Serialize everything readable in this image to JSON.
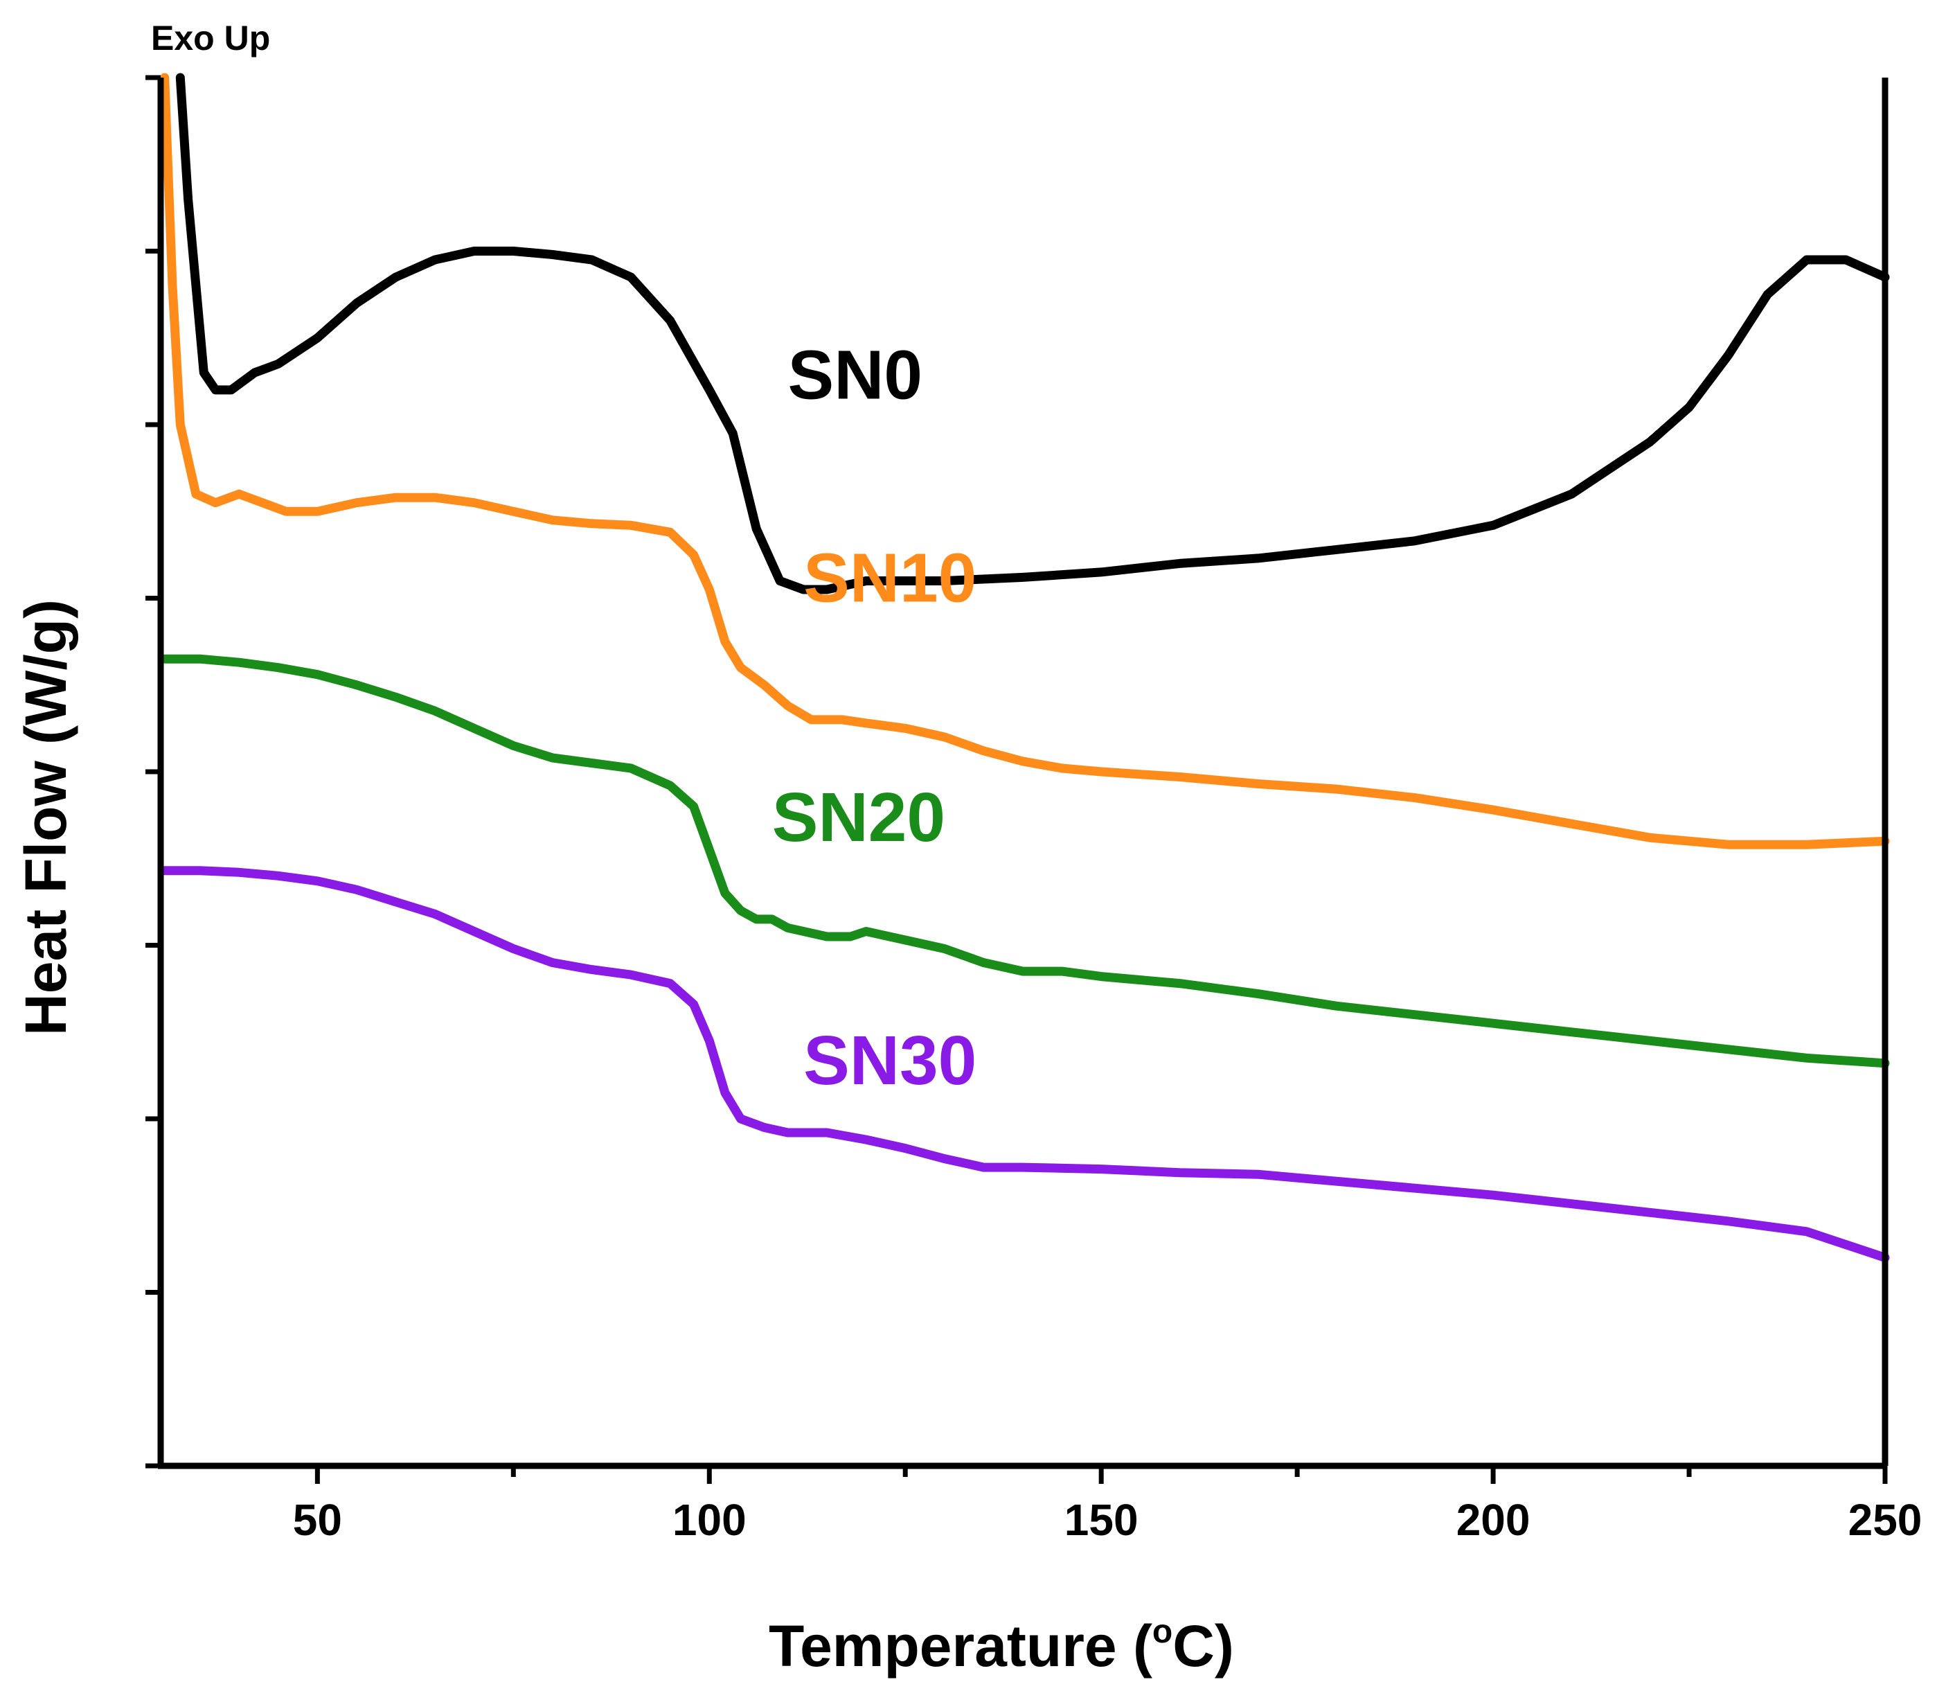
{
  "chart_data": {
    "type": "line",
    "title": "",
    "annotation": "Exo Up",
    "xlabel": "Temperature (",
    "xlabel_degree": "o",
    "xlabel_unit": "C)",
    "ylabel": "Heat Flow (W/g)",
    "xlim": [
      30,
      250
    ],
    "ylim": [
      0,
      8
    ],
    "x_ticks_major": [
      50,
      100,
      150,
      200,
      250
    ],
    "x_tick_labels": [
      "50",
      "100",
      "150",
      "200",
      "250"
    ],
    "x_ticks_minor": [
      75,
      125,
      175,
      225
    ],
    "y_ticks": [
      0,
      1,
      2,
      3,
      4,
      5,
      6,
      7,
      8
    ],
    "y_tick_labels_visible": false,
    "grid": false,
    "legend": "none",
    "series": [
      {
        "name": "SN0",
        "color": "#000000",
        "label_at": [
          110,
          6.15
        ],
        "points": [
          [
            32.5,
            8.0
          ],
          [
            33.5,
            7.3
          ],
          [
            35.5,
            6.3
          ],
          [
            37,
            6.2
          ],
          [
            39,
            6.2
          ],
          [
            42,
            6.3
          ],
          [
            45,
            6.35
          ],
          [
            50,
            6.5
          ],
          [
            55,
            6.7
          ],
          [
            60,
            6.85
          ],
          [
            65,
            6.95
          ],
          [
            70,
            7.0
          ],
          [
            75,
            7.0
          ],
          [
            80,
            6.98
          ],
          [
            85,
            6.95
          ],
          [
            90,
            6.85
          ],
          [
            95,
            6.6
          ],
          [
            100,
            6.2
          ],
          [
            103,
            5.95
          ],
          [
            106,
            5.4
          ],
          [
            109,
            5.1
          ],
          [
            112,
            5.05
          ],
          [
            115,
            5.05
          ],
          [
            120,
            5.1
          ],
          [
            125,
            5.1
          ],
          [
            130,
            5.1
          ],
          [
            140,
            5.12
          ],
          [
            150,
            5.15
          ],
          [
            160,
            5.2
          ],
          [
            170,
            5.23
          ],
          [
            180,
            5.28
          ],
          [
            190,
            5.33
          ],
          [
            200,
            5.42
          ],
          [
            210,
            5.6
          ],
          [
            220,
            5.9
          ],
          [
            225,
            6.1
          ],
          [
            230,
            6.4
          ],
          [
            235,
            6.75
          ],
          [
            240,
            6.95
          ],
          [
            245,
            6.95
          ],
          [
            250,
            6.85
          ]
        ]
      },
      {
        "name": "SN10",
        "color": "#ff8c1a",
        "label_at": [
          112,
          4.98
        ],
        "points": [
          [
            30.5,
            8.0
          ],
          [
            31.5,
            6.8
          ],
          [
            32.5,
            6.0
          ],
          [
            34.5,
            5.6
          ],
          [
            37,
            5.55
          ],
          [
            40,
            5.6
          ],
          [
            43,
            5.55
          ],
          [
            46,
            5.5
          ],
          [
            50,
            5.5
          ],
          [
            55,
            5.55
          ],
          [
            60,
            5.58
          ],
          [
            65,
            5.58
          ],
          [
            70,
            5.55
          ],
          [
            75,
            5.5
          ],
          [
            80,
            5.45
          ],
          [
            85,
            5.43
          ],
          [
            90,
            5.42
          ],
          [
            95,
            5.38
          ],
          [
            98,
            5.25
          ],
          [
            100,
            5.05
          ],
          [
            102,
            4.75
          ],
          [
            104,
            4.6
          ],
          [
            107,
            4.5
          ],
          [
            110,
            4.38
          ],
          [
            113,
            4.3
          ],
          [
            117,
            4.3
          ],
          [
            120,
            4.28
          ],
          [
            125,
            4.25
          ],
          [
            130,
            4.2
          ],
          [
            135,
            4.12
          ],
          [
            140,
            4.06
          ],
          [
            145,
            4.02
          ],
          [
            150,
            4.0
          ],
          [
            160,
            3.97
          ],
          [
            170,
            3.93
          ],
          [
            180,
            3.9
          ],
          [
            190,
            3.85
          ],
          [
            200,
            3.78
          ],
          [
            210,
            3.7
          ],
          [
            220,
            3.62
          ],
          [
            230,
            3.58
          ],
          [
            240,
            3.58
          ],
          [
            250,
            3.6
          ]
        ]
      },
      {
        "name": "SN20",
        "color": "#1a8c1a",
        "label_at": [
          108,
          3.6
        ],
        "points": [
          [
            30.5,
            4.65
          ],
          [
            35,
            4.65
          ],
          [
            40,
            4.63
          ],
          [
            45,
            4.6
          ],
          [
            50,
            4.56
          ],
          [
            55,
            4.5
          ],
          [
            60,
            4.43
          ],
          [
            65,
            4.35
          ],
          [
            70,
            4.25
          ],
          [
            75,
            4.15
          ],
          [
            80,
            4.08
          ],
          [
            85,
            4.05
          ],
          [
            90,
            4.02
          ],
          [
            95,
            3.92
          ],
          [
            98,
            3.8
          ],
          [
            100,
            3.55
          ],
          [
            102,
            3.3
          ],
          [
            104,
            3.2
          ],
          [
            106,
            3.15
          ],
          [
            108,
            3.15
          ],
          [
            110,
            3.1
          ],
          [
            115,
            3.05
          ],
          [
            118,
            3.05
          ],
          [
            120,
            3.08
          ],
          [
            125,
            3.03
          ],
          [
            130,
            2.98
          ],
          [
            135,
            2.9
          ],
          [
            140,
            2.85
          ],
          [
            145,
            2.85
          ],
          [
            150,
            2.82
          ],
          [
            160,
            2.78
          ],
          [
            170,
            2.72
          ],
          [
            180,
            2.65
          ],
          [
            190,
            2.6
          ],
          [
            200,
            2.55
          ],
          [
            210,
            2.5
          ],
          [
            220,
            2.45
          ],
          [
            230,
            2.4
          ],
          [
            240,
            2.35
          ],
          [
            250,
            2.32
          ]
        ]
      },
      {
        "name": "SN30",
        "color": "#8a1ae6",
        "label_at": [
          112,
          2.2
        ],
        "points": [
          [
            30.5,
            3.43
          ],
          [
            35,
            3.43
          ],
          [
            40,
            3.42
          ],
          [
            45,
            3.4
          ],
          [
            50,
            3.37
          ],
          [
            55,
            3.32
          ],
          [
            60,
            3.25
          ],
          [
            65,
            3.18
          ],
          [
            70,
            3.08
          ],
          [
            75,
            2.98
          ],
          [
            80,
            2.9
          ],
          [
            85,
            2.86
          ],
          [
            90,
            2.83
          ],
          [
            95,
            2.78
          ],
          [
            98,
            2.66
          ],
          [
            100,
            2.45
          ],
          [
            102,
            2.15
          ],
          [
            104,
            2.0
          ],
          [
            107,
            1.95
          ],
          [
            110,
            1.92
          ],
          [
            115,
            1.92
          ],
          [
            120,
            1.88
          ],
          [
            125,
            1.83
          ],
          [
            130,
            1.77
          ],
          [
            135,
            1.72
          ],
          [
            140,
            1.72
          ],
          [
            150,
            1.71
          ],
          [
            160,
            1.69
          ],
          [
            170,
            1.68
          ],
          [
            180,
            1.64
          ],
          [
            190,
            1.6
          ],
          [
            200,
            1.56
          ],
          [
            210,
            1.51
          ],
          [
            220,
            1.46
          ],
          [
            230,
            1.41
          ],
          [
            240,
            1.35
          ],
          [
            250,
            1.2
          ]
        ]
      }
    ]
  }
}
